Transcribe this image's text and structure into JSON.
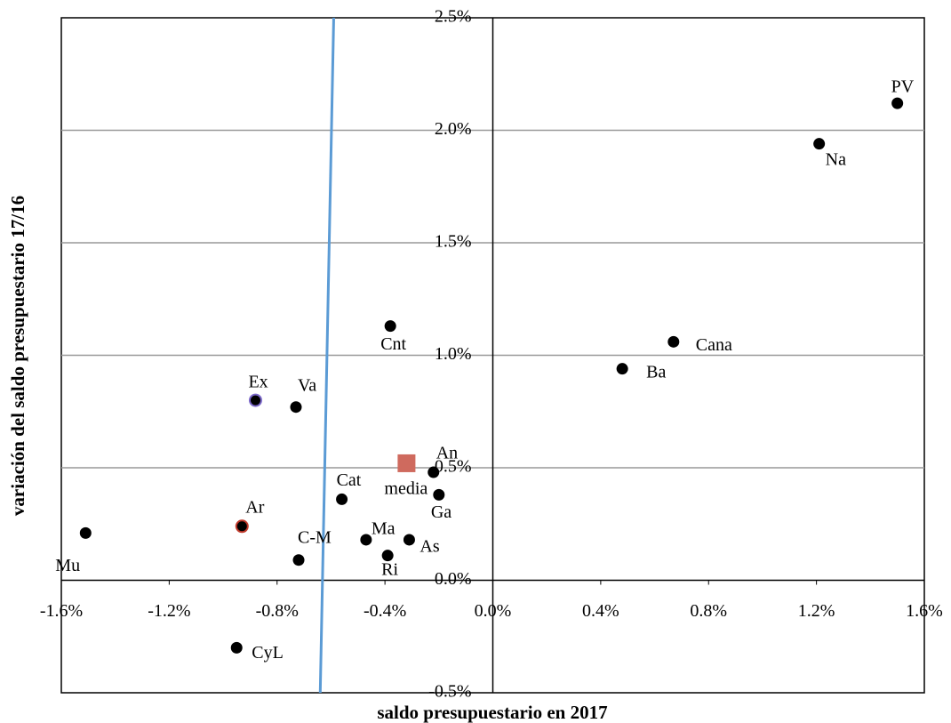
{
  "chart_data": {
    "type": "scatter",
    "x_label": "saldo presupuestario en 2017",
    "y_label": "variación del saldo presupuestario 17/16",
    "xlim": [
      -1.6,
      1.6
    ],
    "ylim": [
      -0.5,
      2.5
    ],
    "xticks": [
      {
        "value": -1.6,
        "label": "-1.6%"
      },
      {
        "value": -1.2,
        "label": "-1.2%"
      },
      {
        "value": -0.8,
        "label": "-0.8%"
      },
      {
        "value": -0.4,
        "label": "-0.4%"
      },
      {
        "value": 0,
        "label": "0.0%"
      },
      {
        "value": 0.4,
        "label": "0.4%"
      },
      {
        "value": 0.8,
        "label": "0.8%"
      },
      {
        "value": 1.2,
        "label": "1.2%"
      },
      {
        "value": 1.6,
        "label": "1.6%"
      }
    ],
    "yticks": [
      {
        "value": -0.5,
        "label": "-0.5%"
      },
      {
        "value": 0,
        "label": "0.0%"
      },
      {
        "value": 0.5,
        "label": "0.5%"
      },
      {
        "value": 1.0,
        "label": "1.0%"
      },
      {
        "value": 1.5,
        "label": "1.5%"
      },
      {
        "value": 2.0,
        "label": "2.0%"
      },
      {
        "value": 2.5,
        "label": "2.5%"
      }
    ],
    "grid": true,
    "color": "#000000",
    "points": [
      {
        "label": "PV",
        "x": 1.5,
        "y": 2.12
      },
      {
        "label": "Na",
        "x": 1.21,
        "y": 1.94
      },
      {
        "label": "Cana",
        "x": 0.67,
        "y": 1.06
      },
      {
        "label": "Ba",
        "x": 0.48,
        "y": 0.94
      },
      {
        "label": "Cnt",
        "x": -0.38,
        "y": 1.13
      },
      {
        "label": "Ex",
        "x": -0.88,
        "y": 0.8,
        "edgecolor": "#7b68c8"
      },
      {
        "label": "Va",
        "x": -0.73,
        "y": 0.77
      },
      {
        "label": "media",
        "x": -0.32,
        "y": 0.52,
        "marker": "square",
        "color": "#cf6a5e"
      },
      {
        "label": "An",
        "x": -0.22,
        "y": 0.48
      },
      {
        "label": "Ga",
        "x": -0.2,
        "y": 0.38
      },
      {
        "label": "Cat",
        "x": -0.56,
        "y": 0.36
      },
      {
        "label": "Ar",
        "x": -0.93,
        "y": 0.24,
        "edgecolor": "#c0392b"
      },
      {
        "label": "Mu",
        "x": -1.51,
        "y": 0.21
      },
      {
        "label": "Ma",
        "x": -0.47,
        "y": 0.18
      },
      {
        "label": "As",
        "x": -0.31,
        "y": 0.18
      },
      {
        "label": "Ri",
        "x": -0.39,
        "y": 0.11
      },
      {
        "label": "C-M",
        "x": -0.72,
        "y": 0.09
      },
      {
        "label": "CyL",
        "x": -0.95,
        "y": -0.3
      }
    ],
    "reference_line": {
      "x": [
        -0.59,
        -0.64
      ],
      "y": [
        2.5,
        -0.5
      ],
      "color": "#5b9bd5"
    }
  }
}
